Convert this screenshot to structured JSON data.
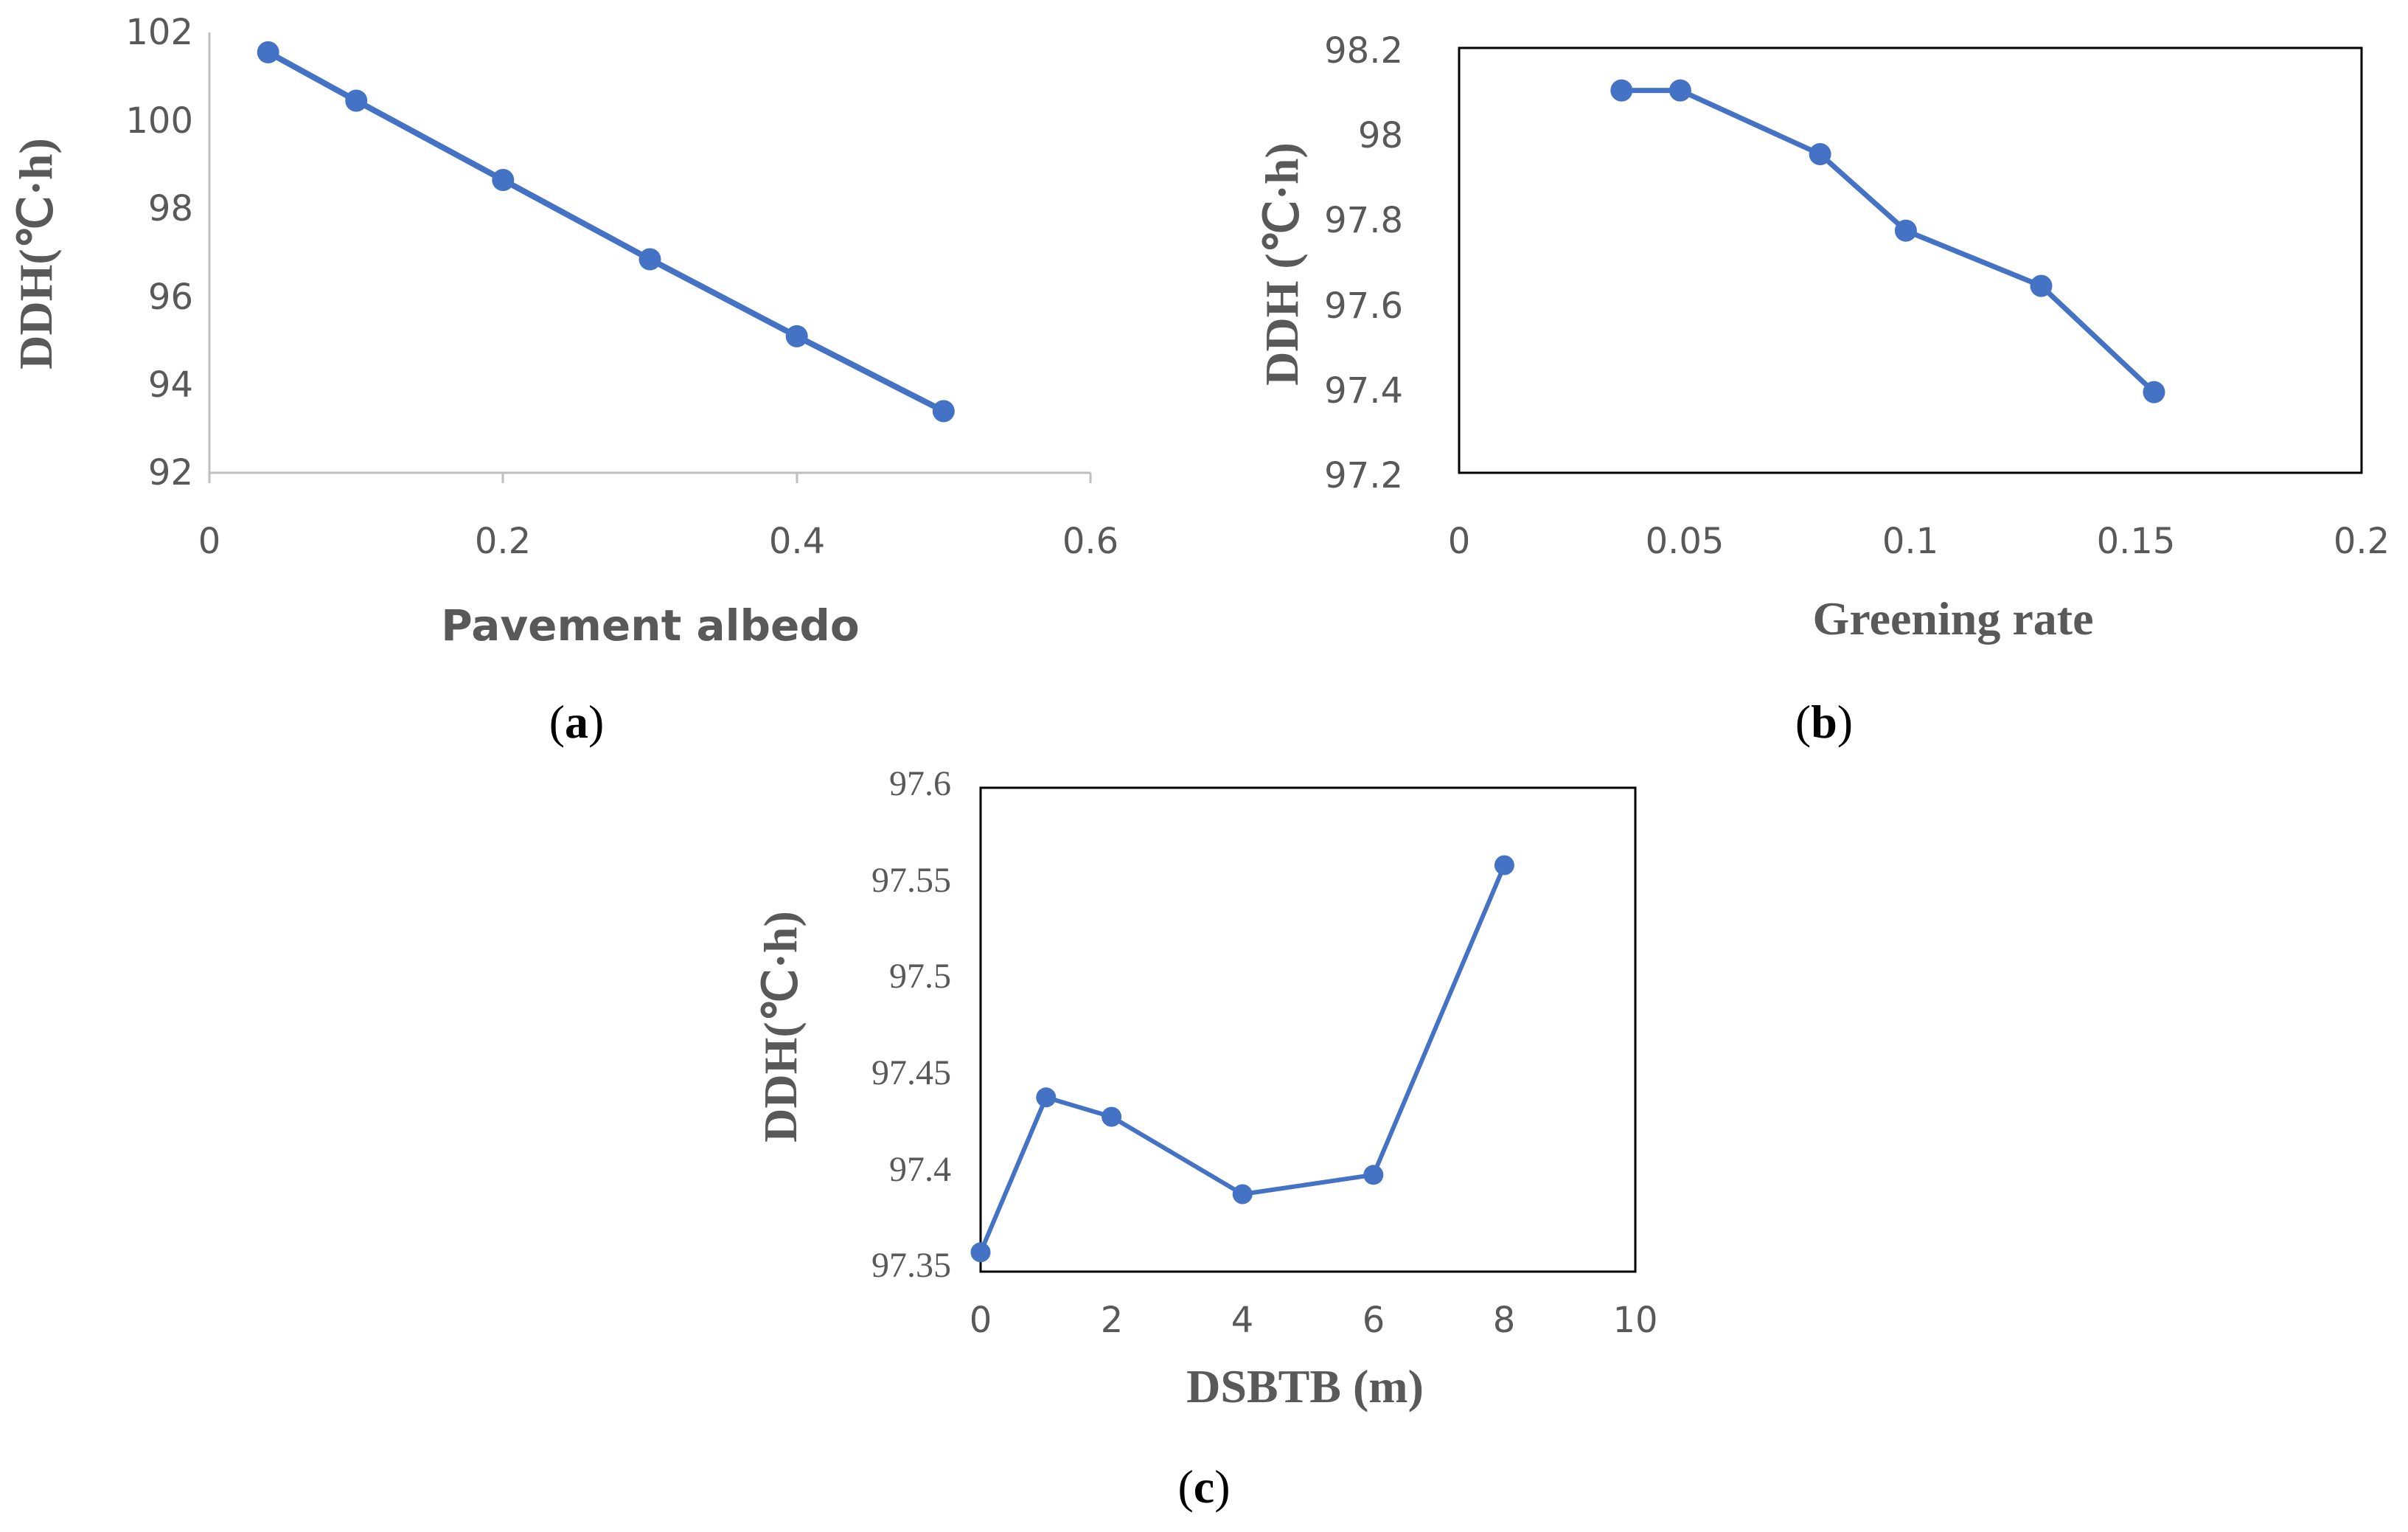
{
  "colors": {
    "series": "#4472C4",
    "axis": "#BFBFBF",
    "frame": "#000000",
    "text": "#595959"
  },
  "chart_data": [
    {
      "type": "line",
      "id": "a",
      "panel_label": "a",
      "title": "",
      "xlabel": "Pavement albedo",
      "ylabel": "DDH(℃·h)",
      "xlim": [
        0,
        0.6
      ],
      "ylim": [
        92,
        102
      ],
      "xticks": [
        "0",
        "0.2",
        "0.4",
        "0.6"
      ],
      "yticks": [
        "92",
        "94",
        "96",
        "98",
        "100",
        "102"
      ],
      "grid": false,
      "series": [
        {
          "name": "DDH",
          "x": [
            0.04,
            0.1,
            0.2,
            0.3,
            0.4,
            0.5
          ],
          "y": [
            101.55,
            100.45,
            98.65,
            96.85,
            95.1,
            93.4
          ]
        }
      ]
    },
    {
      "type": "line",
      "id": "b",
      "panel_label": "b",
      "title": "",
      "xlabel": "Greening rate",
      "ylabel": "DDH (℃·h)",
      "xlim": [
        0,
        0.2
      ],
      "ylim": [
        97.2,
        98.2
      ],
      "xticks": [
        "0",
        "0.05",
        "0.1",
        "0.15",
        "0.2"
      ],
      "yticks": [
        "97.2",
        "97.4",
        "97.6",
        "97.8",
        "98",
        "98.2"
      ],
      "grid": false,
      "series": [
        {
          "name": "DDH",
          "x": [
            0.036,
            0.049,
            0.08,
            0.099,
            0.129,
            0.154
          ],
          "y": [
            98.1,
            98.1,
            97.95,
            97.77,
            97.64,
            97.39
          ]
        }
      ]
    },
    {
      "type": "line",
      "id": "c",
      "panel_label": "c",
      "title": "",
      "xlabel": "DSBTB (m)",
      "ylabel": "DDH(℃·h)",
      "xlim": [
        0,
        10
      ],
      "ylim": [
        97.35,
        97.6
      ],
      "xticks": [
        "0",
        "2",
        "4",
        "6",
        "8",
        "10"
      ],
      "yticks": [
        "97.35",
        "97.4",
        "97.45",
        "97.5",
        "97.55",
        "97.6"
      ],
      "grid": false,
      "series": [
        {
          "name": "DDH",
          "x": [
            0,
            1,
            2,
            4,
            6,
            8
          ],
          "y": [
            97.36,
            97.44,
            97.43,
            97.39,
            97.4,
            97.56
          ]
        }
      ]
    }
  ]
}
